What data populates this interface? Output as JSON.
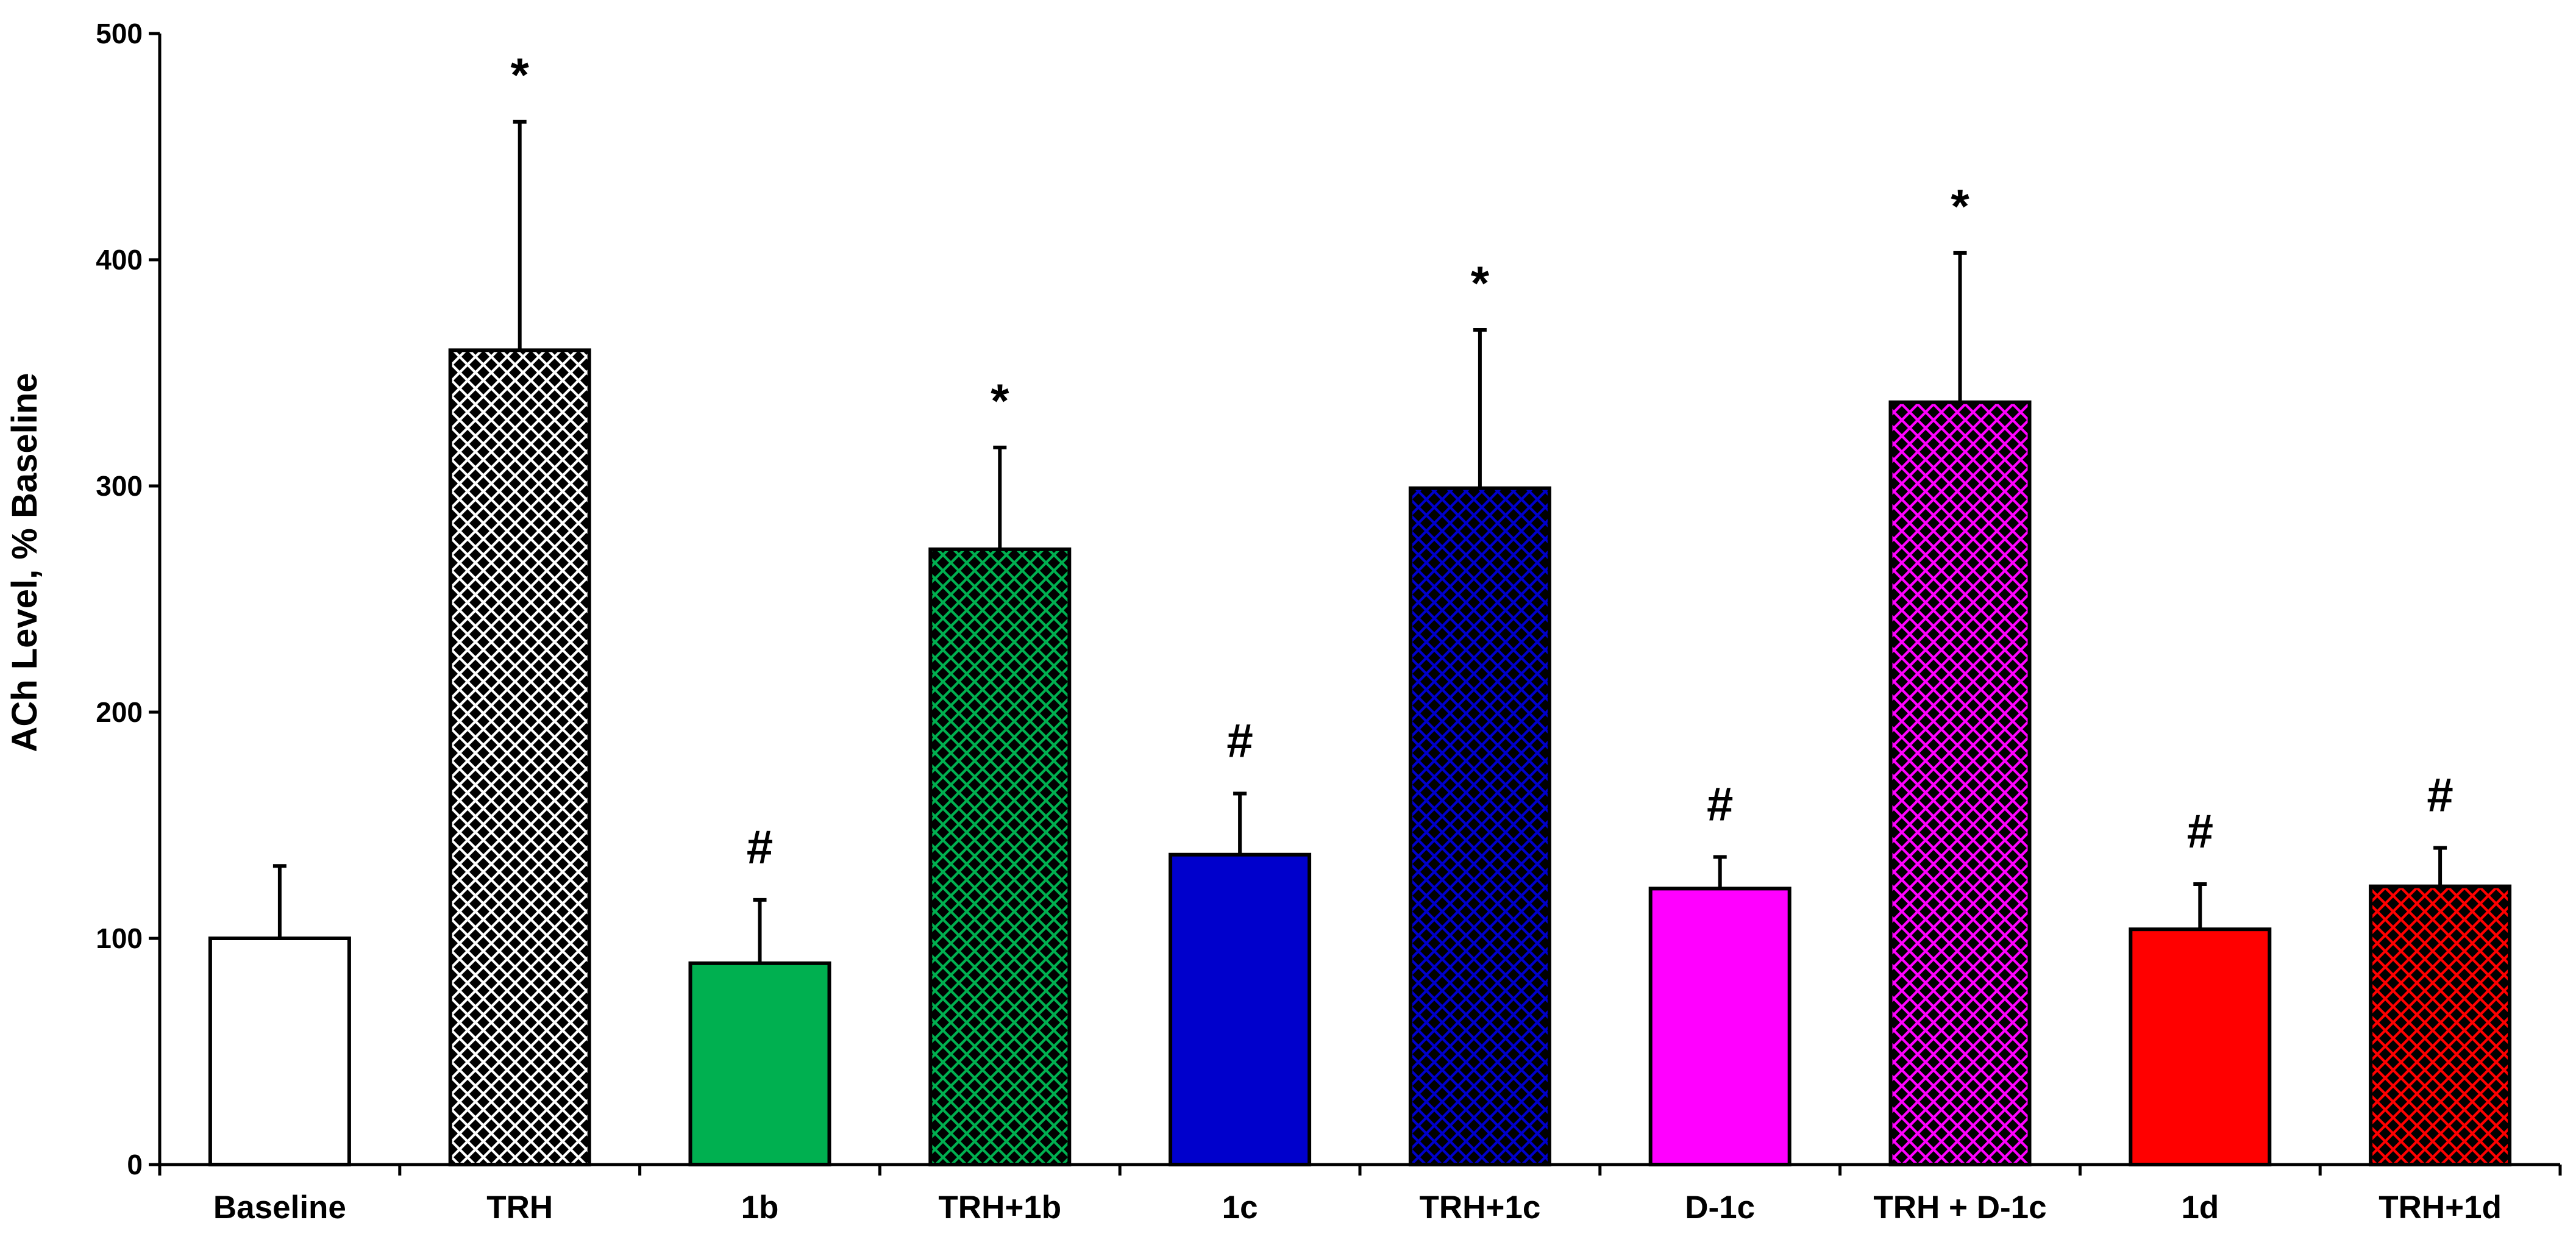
{
  "chart_data": {
    "type": "bar",
    "title": "",
    "xlabel": "",
    "ylabel": "ACh Level, % Baseline",
    "ylim": [
      0,
      500
    ],
    "yticks": [
      0,
      100,
      200,
      300,
      400,
      500
    ],
    "grid": false,
    "categories": [
      "Baseline",
      "TRH",
      "1b",
      "TRH+1b",
      "1c",
      "TRH+1c",
      "D-1c",
      "TRH + D-1c",
      "1d",
      "TRH+1d"
    ],
    "values": [
      100,
      360,
      89,
      272,
      137,
      299,
      122,
      337,
      104,
      123
    ],
    "error": [
      32,
      101,
      28,
      45,
      27,
      70,
      14,
      66,
      20,
      17
    ],
    "annotations": [
      "",
      "*",
      "#",
      "*",
      "#",
      "*",
      "#",
      "*",
      "#",
      "#"
    ],
    "colors": [
      "#ffffff",
      "#ffffff",
      "#00b050",
      "#00b050",
      "#0000cc",
      "#0000cc",
      "#ff00ff",
      "#ff00ff",
      "#ff0000",
      "#ff0000"
    ],
    "patterns": [
      "none",
      "diamond",
      "none",
      "diamond",
      "none",
      "diamond",
      "none",
      "diamond",
      "none",
      "diamond"
    ]
  }
}
